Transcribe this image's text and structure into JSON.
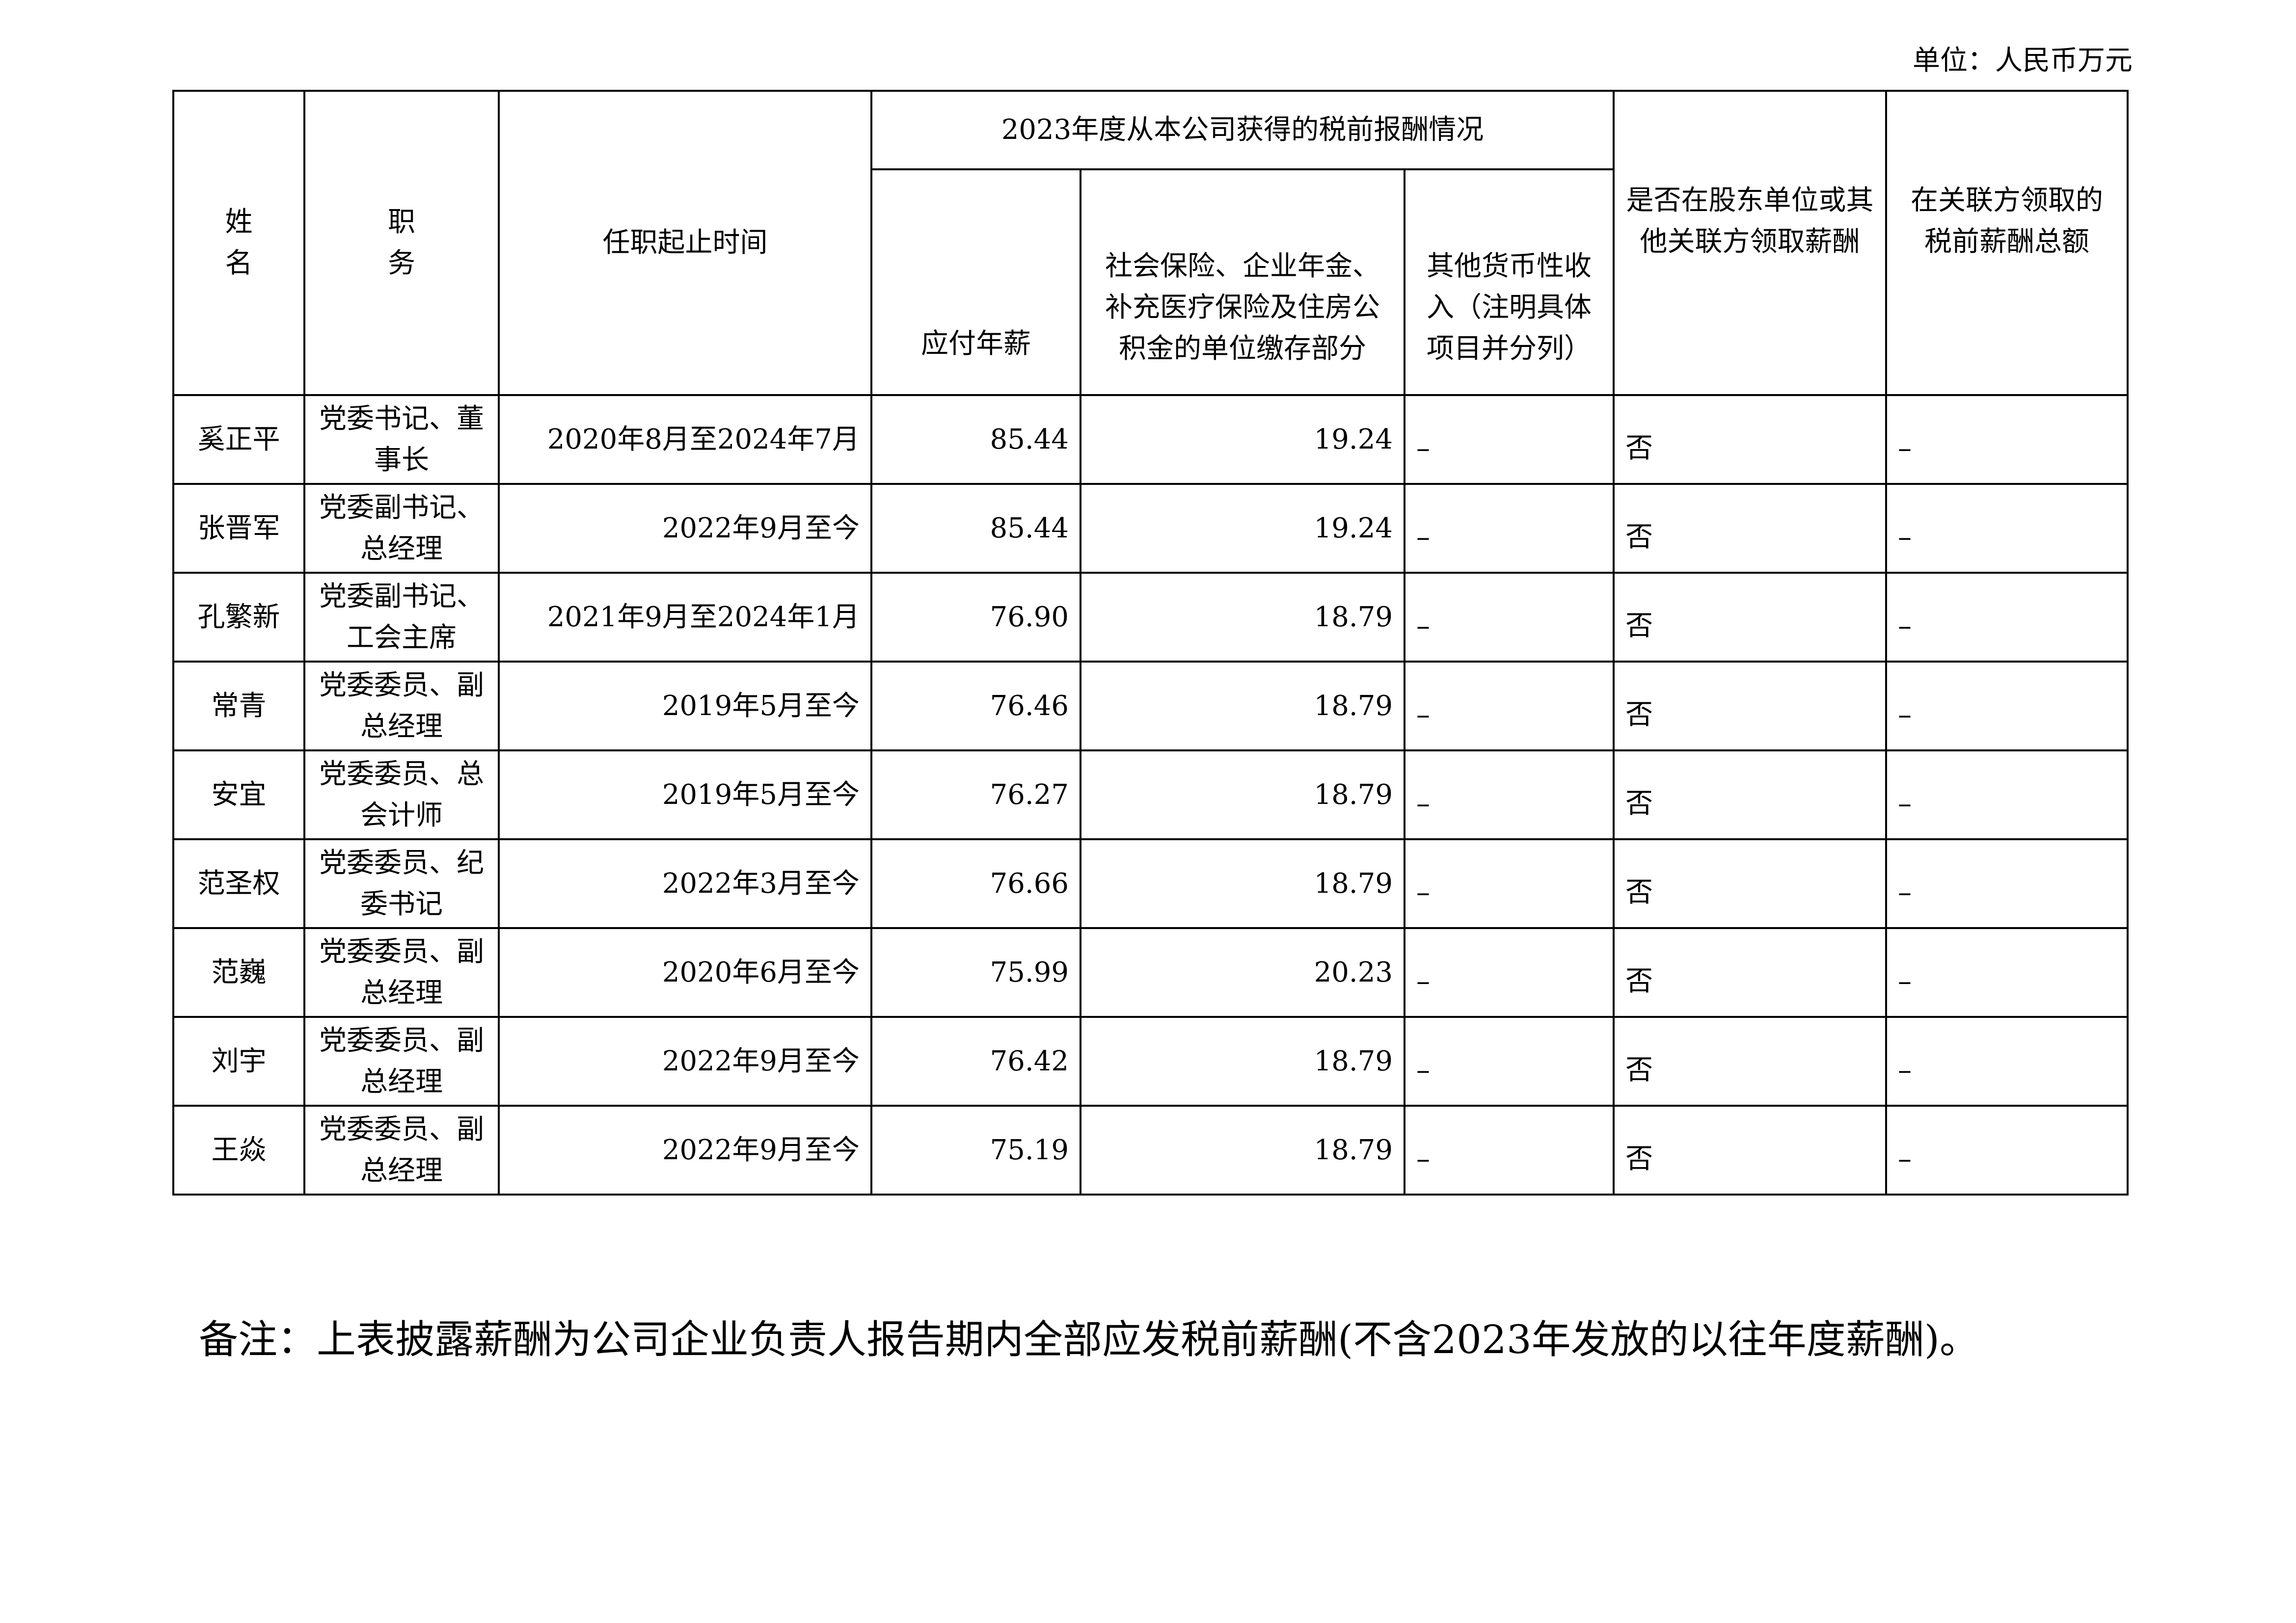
{
  "unit_label": "单位：人民币万元",
  "table": {
    "headers": {
      "name": "姓名",
      "position": "职务",
      "term": "任职起止时间",
      "group": "2023年度从本公司获得的税前报酬情况",
      "salary": "应付年薪",
      "social": "社会保险、企业年金、补充医疗保险及住房公积金的单位缴存部分",
      "other": "其他货币性收入（注明具体项目并分列）",
      "related": "是否在股东单位或其他关联方领取薪酬",
      "related_total": "在关联方领取的税前薪酬总额"
    },
    "rows": [
      {
        "name": "奚正平",
        "position": "党委书记、董事长",
        "term": "2020年8月至2024年7月",
        "salary": "85.44",
        "social": "19.24",
        "other": "–",
        "related": "否",
        "related_total": "–"
      },
      {
        "name": "张晋军",
        "position": "党委副书记、总经理",
        "term": "2022年9月至今",
        "salary": "85.44",
        "social": "19.24",
        "other": "–",
        "related": "否",
        "related_total": "–"
      },
      {
        "name": "孔繁新",
        "position": "党委副书记、工会主席",
        "term": "2021年9月至2024年1月",
        "salary": "76.90",
        "social": "18.79",
        "other": "–",
        "related": "否",
        "related_total": "–"
      },
      {
        "name": "常青",
        "position": "党委委员、副总经理",
        "term": "2019年5月至今",
        "salary": "76.46",
        "social": "18.79",
        "other": "–",
        "related": "否",
        "related_total": "–"
      },
      {
        "name": "安宜",
        "position": "党委委员、总会计师",
        "term": "2019年5月至今",
        "salary": "76.27",
        "social": "18.79",
        "other": "–",
        "related": "否",
        "related_total": "–"
      },
      {
        "name": "范圣权",
        "position": "党委委员、纪委书记",
        "term": "2022年3月至今",
        "salary": "76.66",
        "social": "18.79",
        "other": "–",
        "related": "否",
        "related_total": "–"
      },
      {
        "name": "范巍",
        "position": "党委委员、副总经理",
        "term": "2020年6月至今",
        "salary": "75.99",
        "social": "20.23",
        "other": "–",
        "related": "否",
        "related_total": "–"
      },
      {
        "name": "刘宇",
        "position": "党委委员、副总经理",
        "term": "2022年9月至今",
        "salary": "76.42",
        "social": "18.79",
        "other": "–",
        "related": "否",
        "related_total": "–"
      },
      {
        "name": "王焱",
        "position": "党委委员、副总经理",
        "term": "2022年9月至今",
        "salary": "75.19",
        "social": "18.79",
        "other": "–",
        "related": "否",
        "related_total": "–"
      }
    ]
  },
  "note": "备注：上表披露薪酬为公司企业负责人报告期内全部应发税前薪酬(不含2023年发放的以往年度薪酬)。"
}
